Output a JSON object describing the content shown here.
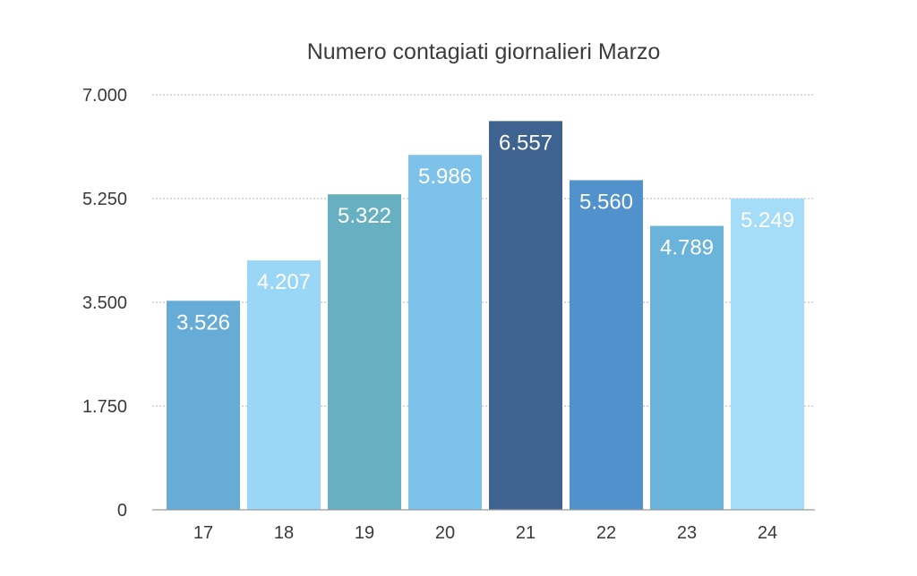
{
  "chart_data": {
    "type": "bar",
    "title": "Numero contagiati giornalieri Marzo",
    "xlabel": "",
    "ylabel": "",
    "categories": [
      "17",
      "18",
      "19",
      "20",
      "21",
      "22",
      "23",
      "24"
    ],
    "values": [
      3526,
      4207,
      5322,
      5986,
      6557,
      5560,
      4789,
      5249
    ],
    "value_labels": [
      "3.526",
      "4.207",
      "5.322",
      "5.986",
      "6.557",
      "5.560",
      "4.789",
      "5.249"
    ],
    "ylim": [
      0,
      7000
    ],
    "yticks": [
      0,
      1750,
      3500,
      5250,
      7000
    ],
    "ytick_labels": [
      "0",
      "1.750",
      "3.500",
      "5.250",
      "7.000"
    ],
    "bar_colors": [
      "#66acd6",
      "#9ad7f7",
      "#66b0c2",
      "#7cc2ea",
      "#3f6390",
      "#5191cc",
      "#6ab4dc",
      "#a5dcf8"
    ],
    "grid": true,
    "legend": "none"
  }
}
